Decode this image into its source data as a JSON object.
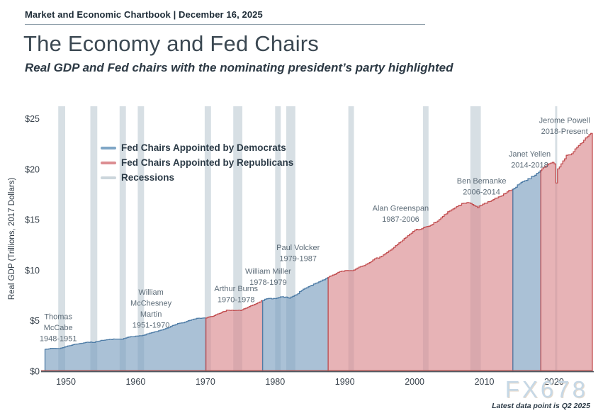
{
  "page": {
    "kicker": "Market and Economic Chartbook | December 16, 2025",
    "title": "The Economy and Fed Chairs",
    "subtitle": "Real GDP and Fed chairs with the nominating president’s party highlighted",
    "watermark": "FX678",
    "footnote": "Latest data point is Q2 2025"
  },
  "legend": {
    "items": [
      {
        "label": "Fed Chairs Appointed by Democrats",
        "color": "#7fa6c6"
      },
      {
        "label": "Fed Chairs Appointed by Republicans",
        "color": "#dc8e92"
      },
      {
        "label": "Recessions",
        "color": "#ccd6dc"
      }
    ]
  },
  "chart_data": {
    "type": "area",
    "title": "The Economy and Fed Chairs",
    "xlabel": "",
    "ylabel": "Real GDP (Trillions, 2017 Dollars)",
    "x_ticks": [
      1950,
      1960,
      1970,
      1980,
      1990,
      2000,
      2010,
      2020
    ],
    "y_ticks": [
      {
        "label": "$0",
        "value": 0
      },
      {
        "label": "$5",
        "value": 5
      },
      {
        "label": "$10",
        "value": 10
      },
      {
        "label": "$15",
        "value": 15
      },
      {
        "label": "$20",
        "value": 20
      },
      {
        "label": "$25",
        "value": 25
      }
    ],
    "xlim": [
      1946.44,
      2025.7
    ],
    "ylim": [
      0,
      26.26
    ],
    "grid": false,
    "legend_position": "upper-left",
    "series_name": "Real GDP (Trillions, 2017 Dollars)",
    "gdp_trillions_2017": [
      [
        1947,
        2.18
      ],
      [
        1948,
        2.27
      ],
      [
        1949,
        2.25
      ],
      [
        1950,
        2.45
      ],
      [
        1951,
        2.64
      ],
      [
        1952,
        2.75
      ],
      [
        1953,
        2.88
      ],
      [
        1954,
        2.86
      ],
      [
        1955,
        3.06
      ],
      [
        1956,
        3.13
      ],
      [
        1957,
        3.19
      ],
      [
        1958,
        3.17
      ],
      [
        1959,
        3.39
      ],
      [
        1960,
        3.48
      ],
      [
        1961,
        3.56
      ],
      [
        1962,
        3.78
      ],
      [
        1963,
        3.94
      ],
      [
        1964,
        4.17
      ],
      [
        1965,
        4.44
      ],
      [
        1966,
        4.73
      ],
      [
        1967,
        4.86
      ],
      [
        1968,
        5.1
      ],
      [
        1969,
        5.26
      ],
      [
        1970,
        5.27
      ],
      [
        1971,
        5.44
      ],
      [
        1972,
        5.73
      ],
      [
        1973,
        6.05
      ],
      [
        1974,
        6.02
      ],
      [
        1975,
        6.01
      ],
      [
        1976,
        6.33
      ],
      [
        1977,
        6.62
      ],
      [
        1978,
        6.99
      ],
      [
        1979,
        7.21
      ],
      [
        1980,
        7.2
      ],
      [
        1981,
        7.38
      ],
      [
        1982,
        7.24
      ],
      [
        1983,
        7.58
      ],
      [
        1984,
        8.13
      ],
      [
        1985,
        8.47
      ],
      [
        1986,
        8.76
      ],
      [
        1987,
        9.07
      ],
      [
        1988,
        9.45
      ],
      [
        1989,
        9.8
      ],
      [
        1990,
        9.98
      ],
      [
        1991,
        9.97
      ],
      [
        1992,
        10.32
      ],
      [
        1993,
        10.6
      ],
      [
        1994,
        11.03
      ],
      [
        1995,
        11.33
      ],
      [
        1996,
        11.76
      ],
      [
        1997,
        12.28
      ],
      [
        1998,
        12.83
      ],
      [
        1999,
        13.44
      ],
      [
        2000,
        13.99
      ],
      [
        2001,
        14.13
      ],
      [
        2002,
        14.37
      ],
      [
        2003,
        14.77
      ],
      [
        2004,
        15.34
      ],
      [
        2005,
        15.88
      ],
      [
        2006,
        16.32
      ],
      [
        2007,
        16.65
      ],
      [
        2008,
        16.63
      ],
      [
        2009,
        16.21
      ],
      [
        2010,
        16.65
      ],
      [
        2011,
        16.9
      ],
      [
        2012,
        17.28
      ],
      [
        2013,
        17.64
      ],
      [
        2014,
        18.04
      ],
      [
        2015,
        18.57
      ],
      [
        2016,
        18.91
      ],
      [
        2017,
        19.33
      ],
      [
        2018,
        19.88
      ],
      [
        2019,
        20.45
      ],
      [
        2019.75,
        20.7
      ],
      [
        2020,
        20.55
      ],
      [
        2020.25,
        18.65
      ],
      [
        2020.5,
        20.05
      ],
      [
        2020.75,
        20.25
      ],
      [
        2021,
        20.55
      ],
      [
        2021.25,
        20.85
      ],
      [
        2021.5,
        21.05
      ],
      [
        2021.75,
        21.4
      ],
      [
        2022.25,
        21.45
      ],
      [
        2022.75,
        21.75
      ],
      [
        2023.25,
        22.2
      ],
      [
        2023.75,
        22.55
      ],
      [
        2024.25,
        22.9
      ],
      [
        2024.75,
        23.25
      ],
      [
        2025,
        23.45
      ],
      [
        2025.5,
        23.7
      ]
    ],
    "fed_chair_segments": [
      {
        "chairs": "Thomas McCabe / William McChesney Martin",
        "party": "Democrats",
        "start": 1947,
        "end": 1970.08
      },
      {
        "chairs": "Arthur Burns",
        "party": "Republicans",
        "start": 1970.08,
        "end": 1978.2
      },
      {
        "chairs": "William Miller / Paul Volcker",
        "party": "Democrats",
        "start": 1978.2,
        "end": 1987.6
      },
      {
        "chairs": "Alan Greenspan / Ben Bernanke",
        "party": "Republicans",
        "start": 1987.6,
        "end": 2014.1
      },
      {
        "chairs": "Janet Yellen",
        "party": "Democrats",
        "start": 2014.1,
        "end": 2018.1
      },
      {
        "chairs": "Jerome Powell",
        "party": "Republicans",
        "start": 2018.1,
        "end": 2025.5
      }
    ],
    "recessions": [
      [
        1948.9,
        1949.9
      ],
      [
        1953.5,
        1954.5
      ],
      [
        1957.7,
        1958.6
      ],
      [
        1960.3,
        1961.2
      ],
      [
        1969.9,
        1970.8
      ],
      [
        1974.0,
        1975.3
      ],
      [
        1980.0,
        1980.8
      ],
      [
        1981.6,
        1982.9
      ],
      [
        1990.5,
        1991.3
      ],
      [
        2001.2,
        2002.0
      ],
      [
        2008.0,
        2009.5
      ],
      [
        2020.15,
        2020.45
      ]
    ],
    "annotations": [
      {
        "lines": [
          "Thomas",
          "McCabe",
          "1948-1951"
        ],
        "year": 1948.9,
        "label_y": 5.45
      },
      {
        "lines": [
          "William",
          "McChesney",
          "Martin",
          "1951-1970"
        ],
        "year": 1962.2,
        "label_y": 7.85
      },
      {
        "lines": [
          "Arthur Burns",
          "1970-1978"
        ],
        "year": 1974.4,
        "label_y": 8.2
      },
      {
        "lines": [
          "William Miller",
          "1978-1979"
        ],
        "year": 1979.0,
        "label_y": 9.95
      },
      {
        "lines": [
          "Paul Volcker",
          "1979-1987"
        ],
        "year": 1983.3,
        "label_y": 12.3
      },
      {
        "lines": [
          "Alan Greenspan",
          "1987-2006"
        ],
        "year": 1998.0,
        "label_y": 16.2
      },
      {
        "lines": [
          "Ben Bernanke",
          "2006-2014"
        ],
        "year": 2009.6,
        "label_y": 18.9
      },
      {
        "lines": [
          "Janet Yellen",
          "2014-2018"
        ],
        "year": 2016.5,
        "label_y": 21.55
      },
      {
        "lines": [
          "Jerome Powell",
          "2018-Present"
        ],
        "year": 2021.5,
        "label_y": 24.9
      }
    ],
    "colors": {
      "dem_fill": "#7da0c0",
      "dem_stroke": "#4e7ca6",
      "rep_fill": "#da8a8f",
      "rep_stroke": "#c24f51",
      "fill_opacity": 0.65,
      "recession": "#d7dfe4",
      "baseline_red": "#b3524f",
      "axis": "#4e585f",
      "tick_text": "#39434d",
      "axis_title_text": "#2d3944",
      "annotation_text": "#5d6c78"
    }
  }
}
